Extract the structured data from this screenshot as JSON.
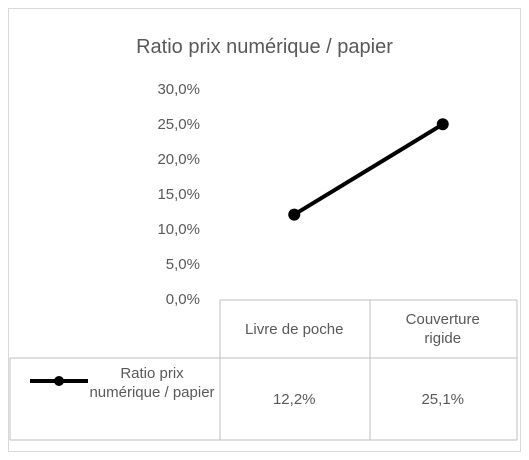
{
  "chart_data": {
    "type": "line",
    "title": "Ratio prix numérique / papier",
    "categories": [
      "Livre de poche",
      "Couverture rigide"
    ],
    "series": [
      {
        "name": "Ratio prix numérique / papier",
        "color": "#000000",
        "values": [
          12.2,
          25.1
        ],
        "value_labels": [
          "12,2%",
          "25,1%"
        ]
      }
    ],
    "ylim": [
      0,
      30
    ],
    "yticks": [
      {
        "value": 0,
        "label": "0,0%"
      },
      {
        "value": 5,
        "label": "5,0%"
      },
      {
        "value": 10,
        "label": "10,0%"
      },
      {
        "value": 15,
        "label": "15,0%"
      },
      {
        "value": 20,
        "label": "20,0%"
      },
      {
        "value": 25,
        "label": "25,0%"
      },
      {
        "value": 30,
        "label": "30,0%"
      }
    ],
    "grid": false,
    "data_table": true
  }
}
